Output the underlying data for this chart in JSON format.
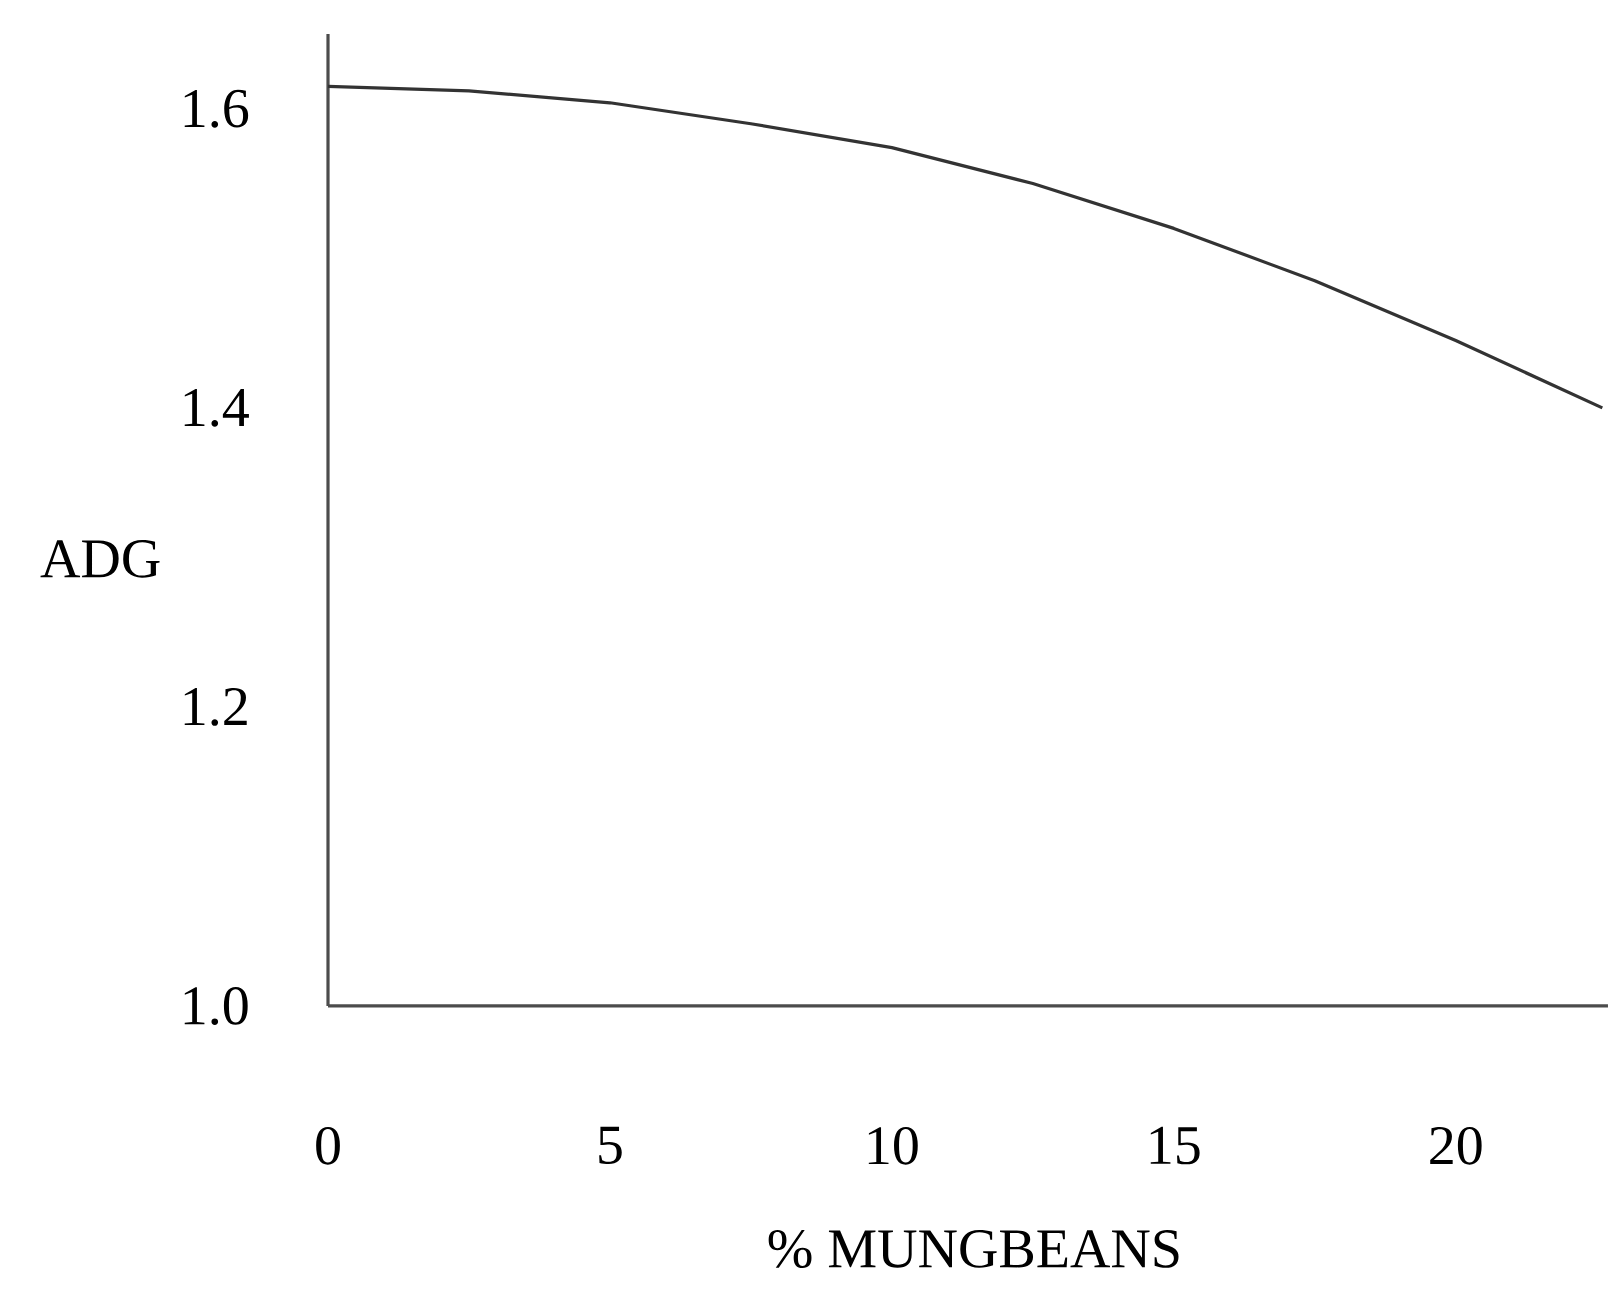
{
  "chart_data": {
    "type": "line",
    "xlabel": "% MUNGBEANS",
    "ylabel": "ADG",
    "x": [
      0,
      2.5,
      5,
      7.5,
      10,
      12.5,
      15,
      17.5,
      20,
      22.6
    ],
    "values": [
      1.615,
      1.612,
      1.604,
      1.59,
      1.574,
      1.55,
      1.52,
      1.485,
      1.445,
      1.4
    ],
    "color": "#333333",
    "xlim": [
      0,
      22.7
    ],
    "ylim": [
      1.0,
      1.65
    ],
    "xticks": [
      0,
      5,
      10,
      15,
      20
    ],
    "yticks": [
      {
        "value": 1.0,
        "label": "1.0"
      },
      {
        "value": 1.2,
        "label": "1.2"
      },
      {
        "value": 1.4,
        "label": "1.4"
      },
      {
        "value": 1.6,
        "label": "1.6"
      }
    ]
  }
}
